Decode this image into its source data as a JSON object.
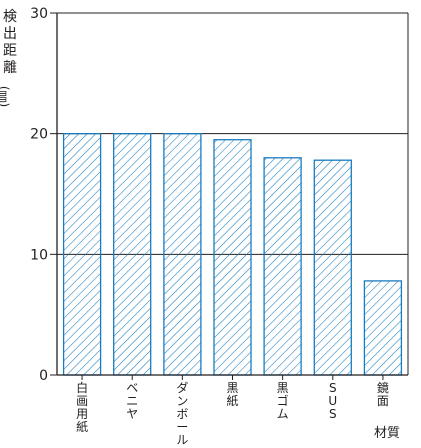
{
  "chart_data": {
    "type": "bar",
    "ylabel_chars": [
      "検",
      "出",
      "距",
      "離"
    ],
    "ylabel_unit": "(㎜)",
    "xlabel": "材質",
    "ylim": [
      0,
      30
    ],
    "yticks": [
      0,
      10,
      20,
      30
    ],
    "grid": true,
    "categories": [
      "白画用紙",
      "ベニヤ",
      "ダンボール",
      "黒紙",
      "黒ゴム",
      "SUS",
      "鏡面"
    ],
    "values": [
      20,
      20,
      20,
      19.5,
      18,
      17.8,
      7.8
    ],
    "colors": {
      "bar_stroke": "#1a7cc0",
      "bar_hatch": "#1a7cc0",
      "axis": "#231f20"
    }
  }
}
